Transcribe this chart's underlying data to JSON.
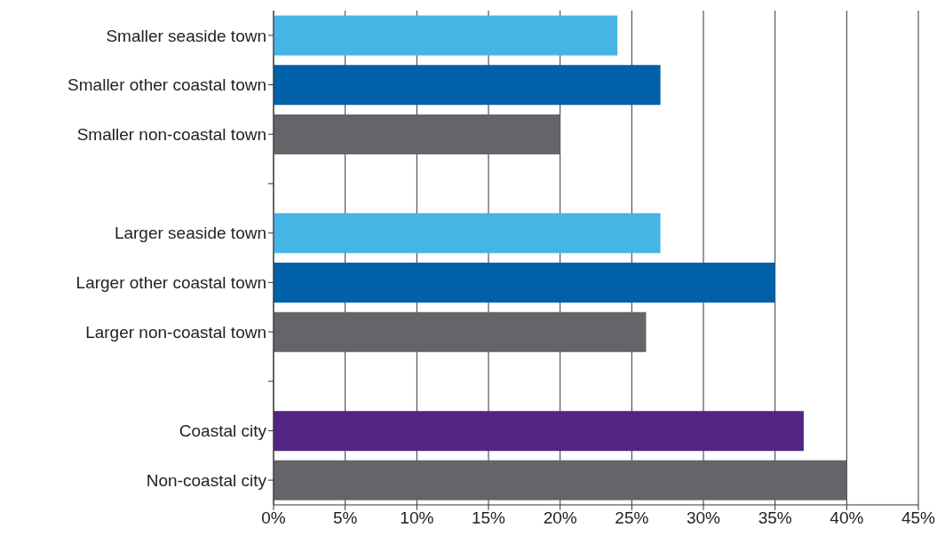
{
  "chart_data": {
    "type": "bar",
    "orientation": "horizontal",
    "categories": [
      "Smaller seaside town",
      "Smaller other coastal town",
      "Smaller non-coastal town",
      null,
      "Larger seaside town",
      "Larger other coastal town",
      "Larger non-coastal town",
      null,
      "Coastal city",
      "Non-coastal city"
    ],
    "values": [
      24,
      27,
      20,
      null,
      27,
      35,
      26,
      null,
      37,
      40
    ],
    "colors": [
      "#45b5e6",
      "#0061a8",
      "#666468",
      "#666468",
      "#45b5e6",
      "#0061a8",
      "#666468",
      "#666468",
      "#522583",
      "#666468"
    ],
    "xlim": [
      0,
      45
    ],
    "xticks": [
      {
        "value": 0,
        "label": "0%"
      },
      {
        "value": 5,
        "label": "5%"
      },
      {
        "value": 10,
        "label": "10%"
      },
      {
        "value": 15,
        "label": "15%"
      },
      {
        "value": 20,
        "label": "20%"
      },
      {
        "value": 25,
        "label": "25%"
      },
      {
        "value": 30,
        "label": "30%"
      },
      {
        "value": 35,
        "label": "35%"
      },
      {
        "value": 40,
        "label": "40%"
      },
      {
        "value": 45,
        "label": "45%"
      }
    ],
    "grid": "x",
    "legend": false
  }
}
